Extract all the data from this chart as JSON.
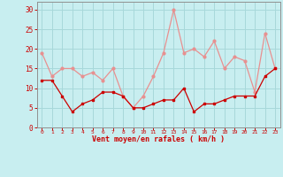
{
  "x": [
    0,
    1,
    2,
    3,
    4,
    5,
    6,
    7,
    8,
    9,
    10,
    11,
    12,
    13,
    14,
    15,
    16,
    17,
    18,
    19,
    20,
    21,
    22,
    23
  ],
  "wind_avg": [
    12,
    12,
    8,
    4,
    6,
    7,
    9,
    9,
    8,
    5,
    5,
    6,
    7,
    7,
    10,
    4,
    6,
    6,
    7,
    8,
    8,
    8,
    13,
    15
  ],
  "wind_gust": [
    19,
    13,
    15,
    15,
    13,
    14,
    12,
    15,
    8,
    5,
    8,
    13,
    19,
    30,
    19,
    20,
    18,
    22,
    15,
    18,
    17,
    9,
    24,
    15
  ],
  "avg_color": "#cc0000",
  "gust_color": "#e89090",
  "bg_color": "#c8eef0",
  "grid_color": "#a8d8da",
  "xlabel": "Vent moyen/en rafales ( km/h )",
  "xlabel_color": "#cc0000",
  "tick_color": "#cc0000",
  "ylim": [
    0,
    32
  ],
  "yticks": [
    0,
    5,
    10,
    15,
    20,
    25,
    30
  ],
  "figsize": [
    3.2,
    2.0
  ],
  "dpi": 100
}
